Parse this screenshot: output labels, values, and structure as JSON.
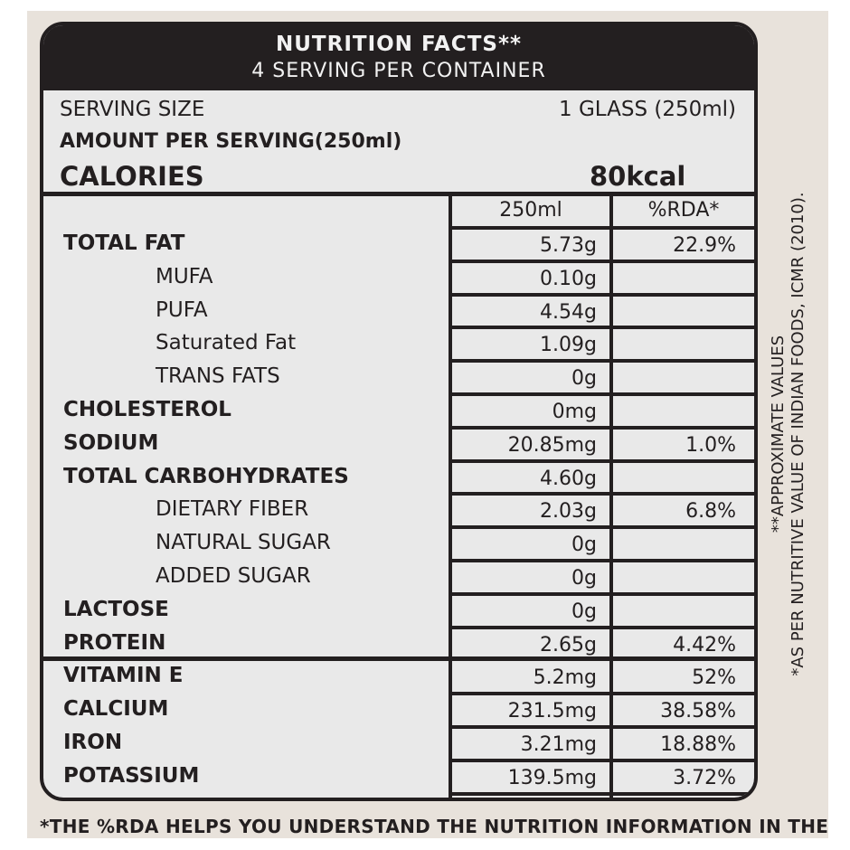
{
  "header": {
    "title": "NUTRITION FACTS**",
    "subtitle": "4 SERVING PER CONTAINER"
  },
  "serving": {
    "label": "SERVING SIZE",
    "value": "1 GLASS (250ml)",
    "amount_label": "AMOUNT PER SERVING(250ml)"
  },
  "calories": {
    "label": "CALORIES",
    "value": "80kcal"
  },
  "columns": {
    "per": "250ml",
    "rda": "%RDA*"
  },
  "rows": [
    {
      "label": "TOTAL FAT",
      "value": "5.73g",
      "rda": "22.9%"
    },
    {
      "label": "MUFA",
      "value": "0.10g",
      "rda": ""
    },
    {
      "label": "PUFA",
      "value": "4.54g",
      "rda": ""
    },
    {
      "label": "Saturated Fat",
      "value": "1.09g",
      "rda": ""
    },
    {
      "label": "TRANS FATS",
      "value": "0g",
      "rda": ""
    },
    {
      "label": "CHOLESTEROL",
      "value": "0mg",
      "rda": ""
    },
    {
      "label": "SODIUM",
      "value": "20.85mg",
      "rda": "1.0%"
    },
    {
      "label": "TOTAL CARBOHYDRATES",
      "value": "4.60g",
      "rda": ""
    },
    {
      "label": "DIETARY FIBER",
      "value": "2.03g",
      "rda": "6.8%"
    },
    {
      "label": "NATURAL SUGAR",
      "value": "0g",
      "rda": ""
    },
    {
      "label": "ADDED SUGAR",
      "value": "0g",
      "rda": ""
    },
    {
      "label": "LACTOSE",
      "value": "0g",
      "rda": ""
    },
    {
      "label": "PROTEIN",
      "value": "2.65g",
      "rda": "4.42%"
    },
    {
      "label": "VITAMIN E",
      "value": "5.2mg",
      "rda": "52%"
    },
    {
      "label": "CALCIUM",
      "value": "231.5mg",
      "rda": "38.58%"
    },
    {
      "label": "IRON",
      "value": "3.21mg",
      "rda": "18.88%"
    },
    {
      "label": "POTASSIUM",
      "value": "139.5mg",
      "rda": "3.72%"
    }
  ],
  "side_note": {
    "line1": "**APPROXIMATE VALUES",
    "line2": "*AS PER NUTRITIVE VALUE OF INDIAN FOODS, ICMR (2010)."
  },
  "footnote": "*THE %RDA HELPS YOU UNDERSTAND THE NUTRITION INFORMATION IN THE"
}
